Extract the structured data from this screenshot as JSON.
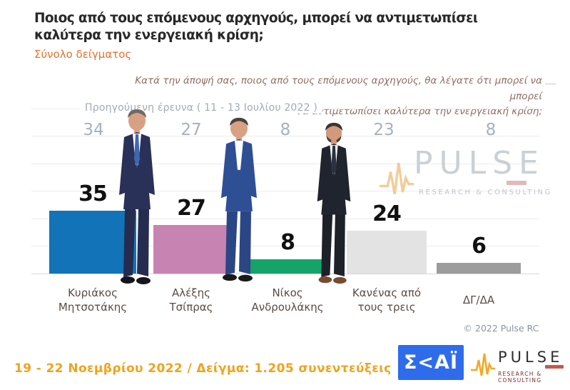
{
  "header": {
    "title": "Ποιος από τους επόμενους αρχηγούς, μπορεί να αντιμετωπίσει\nκαλύτερα την ενεργειακή κρίση;",
    "subtitle": "Σύνολο δείγματος"
  },
  "question_note": "Κατά την άποψή σας, ποιος  από τους επόμενους αρχηγούς, θα λέγατε ότι μπορεί να μπορεί\nνα αντιμετωπίσει καλύτερα την ενεργειακή κρίση;",
  "chart_data": {
    "type": "bar",
    "title": "Ποιος από τους επόμενους αρχηγούς, μπορεί να αντιμετωπίσει καλύτερα την ενεργειακή κρίση;",
    "subtitle": "Σύνολο δείγματος",
    "categories": [
      "Κυριάκος Μητσοτάκης",
      "Αλέξης Τσίπρας",
      "Νίκος Ανδρουλάκης",
      "Κανένας από τους τρεις",
      "ΔΓ/ΔΑ"
    ],
    "categories_lines": [
      [
        "Κυριάκος",
        "Μητσοτάκης"
      ],
      [
        "Αλέξης",
        "Τσίπρας"
      ],
      [
        "Νίκος",
        "Ανδρουλάκης"
      ],
      [
        "Κανένας από",
        "τους τρεις"
      ],
      [
        "ΔΓ/ΔΑ"
      ]
    ],
    "series": [
      {
        "name": "19 - 22 Νοεμβρίου 2022",
        "values": [
          35,
          27,
          8,
          24,
          6
        ]
      },
      {
        "name": "Προηγούμενη έρευνα ( 11 - 13 Ιουλίου  2022 )",
        "values": [
          34,
          27,
          8,
          23,
          8
        ]
      }
    ],
    "bar_colors": [
      "#1273b8",
      "#c783b1",
      "#15a36a",
      "#e3e3e3",
      "#9c9c9c"
    ],
    "value_label_color": "#111111",
    "previous_value_color": "#a6b1ba",
    "grid": true,
    "legend_position": "none",
    "source": "© 2022 Pulse RC"
  },
  "watermark": {
    "brand": "PULSE",
    "tagline": "RESEARCH & CONSULTING"
  },
  "copyright": "© 2022 Pulse RC",
  "footer": {
    "fieldwork": "19 - 22  Νοεμβρίου  2022  /  Δείγμα:  1.205 συνεντεύξεις",
    "skai_text": "Σ<ΑΪ",
    "pulse_brand": "PULSE",
    "pulse_tagline": "RESEARCH & CONSULTING"
  },
  "colors": {
    "subtitle_orange": "#e4722e",
    "question_brown": "#8d6e63",
    "footer_orange": "#efa31c",
    "skai_blue": "#2e6ceb",
    "pulse_orange": "#f5a623"
  }
}
